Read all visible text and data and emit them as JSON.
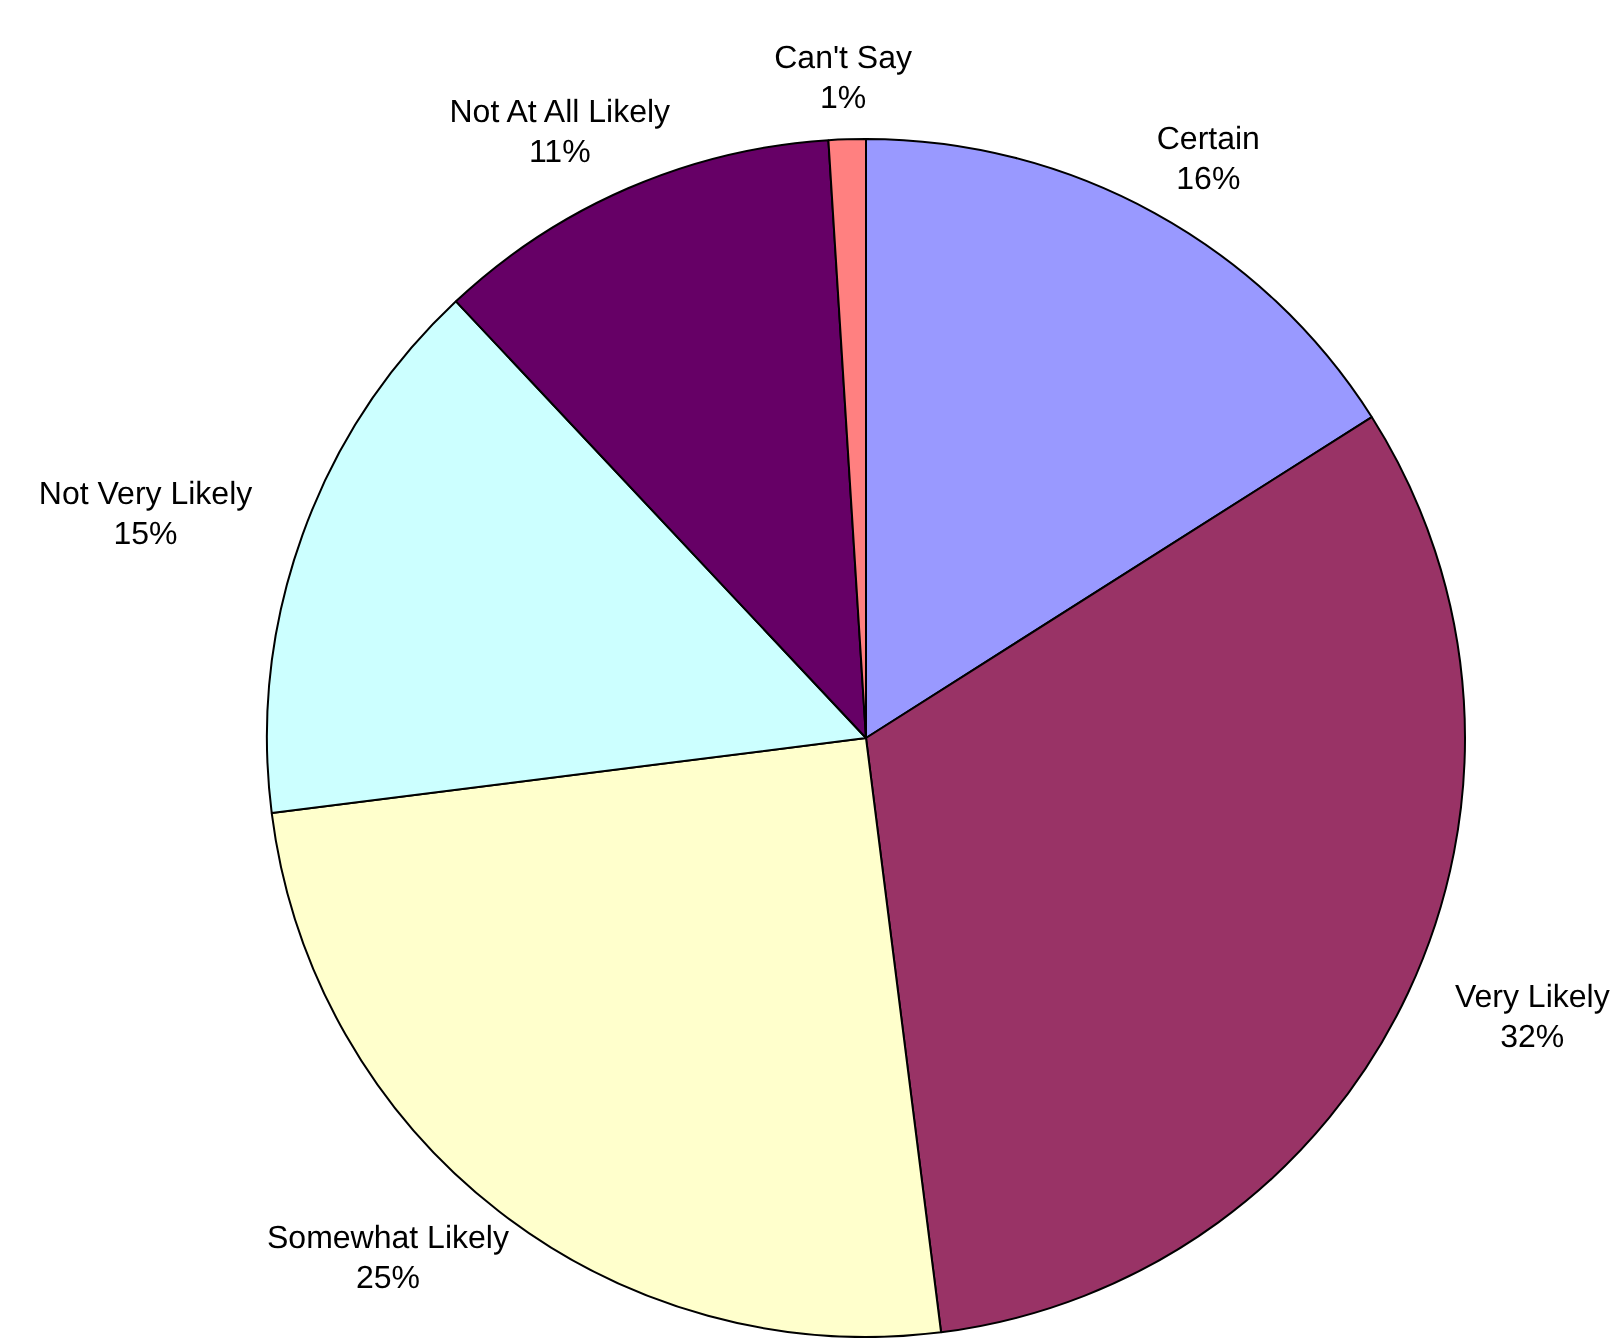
{
  "chart_data": {
    "type": "pie",
    "categories": [
      "Certain",
      "Very Likely",
      "Somewhat Likely",
      "Not Very Likely",
      "Not At All Likely",
      "Can't Say"
    ],
    "values": [
      16,
      32,
      25,
      15,
      11,
      1
    ],
    "value_labels": [
      "16%",
      "32%",
      "25%",
      "15%",
      "11%",
      "1%"
    ],
    "colors": [
      "#9999ff",
      "#993366",
      "#ffffcc",
      "#ccffff",
      "#660066",
      "#ff8080"
    ],
    "legend": false
  }
}
